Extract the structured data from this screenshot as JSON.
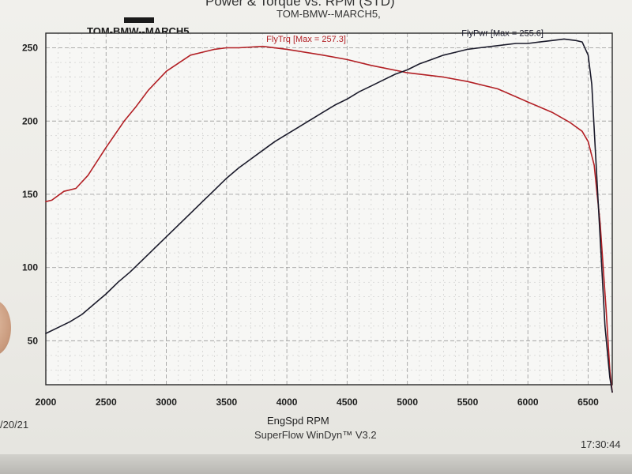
{
  "page": {
    "title": "Power & Torque vs. RPM (STD)",
    "subtitle": "TOM-BMW--MARCH5,",
    "run_label": "TOM-BMW--MARCH5",
    "date": "/20/21",
    "software": "SuperFlow WinDyn™ V3.2",
    "time": "17:30:44"
  },
  "colors": {
    "torque": "#b21f24",
    "power": "#1a1a2a",
    "grid": "#8e8e8e",
    "plot_bg": "#f7f7f5"
  },
  "chart_data": {
    "type": "line",
    "xlabel": "EngSpd RPM",
    "ylabel": "",
    "xlim": [
      2000,
      6700
    ],
    "ylim": [
      20,
      260
    ],
    "x_ticks": [
      2000,
      2500,
      3000,
      3500,
      4000,
      4500,
      5000,
      5500,
      6000,
      6500
    ],
    "y_ticks": [
      50,
      100,
      150,
      200,
      250
    ],
    "grid": true,
    "series": [
      {
        "name": "FlyTrq [Max = 257.3]",
        "color": "#b21f24",
        "x": [
          2000,
          2050,
          2150,
          2250,
          2350,
          2500,
          2650,
          2750,
          2850,
          3000,
          3200,
          3400,
          3500,
          3600,
          3800,
          4000,
          4300,
          4500,
          4700,
          5000,
          5300,
          5500,
          5750,
          6000,
          6200,
          6350,
          6450,
          6500,
          6550,
          6600,
          6650,
          6680,
          6700
        ],
        "y": [
          145,
          146,
          152,
          154,
          163,
          182,
          200,
          210,
          221,
          234,
          245,
          249,
          250,
          250,
          251,
          249,
          245,
          242,
          238,
          233,
          230,
          227,
          222,
          213,
          206,
          199,
          193,
          186,
          170,
          130,
          70,
          30,
          15
        ]
      },
      {
        "name": "FlyPwr [Max = 255.6]",
        "color": "#1a1a2a",
        "x": [
          2000,
          2100,
          2200,
          2300,
          2400,
          2500,
          2600,
          2700,
          2800,
          2900,
          3000,
          3100,
          3200,
          3300,
          3400,
          3500,
          3600,
          3700,
          3800,
          3900,
          4000,
          4100,
          4200,
          4300,
          4400,
          4500,
          4600,
          4700,
          4800,
          4900,
          5000,
          5100,
          5200,
          5300,
          5400,
          5500,
          5600,
          5700,
          5800,
          5900,
          6000,
          6100,
          6200,
          6300,
          6400,
          6450,
          6500,
          6530,
          6560,
          6600,
          6640,
          6680,
          6700
        ],
        "y": [
          55,
          59,
          63,
          68,
          75,
          82,
          90,
          97,
          105,
          113,
          121,
          129,
          137,
          145,
          153,
          161,
          168,
          174,
          180,
          186,
          191,
          196,
          201,
          206,
          211,
          215,
          220,
          224,
          228,
          232,
          235,
          239,
          242,
          245,
          247,
          249,
          250,
          251,
          252,
          253,
          253,
          254,
          255,
          256,
          255,
          254,
          245,
          225,
          180,
          120,
          60,
          25,
          15
        ]
      }
    ]
  }
}
